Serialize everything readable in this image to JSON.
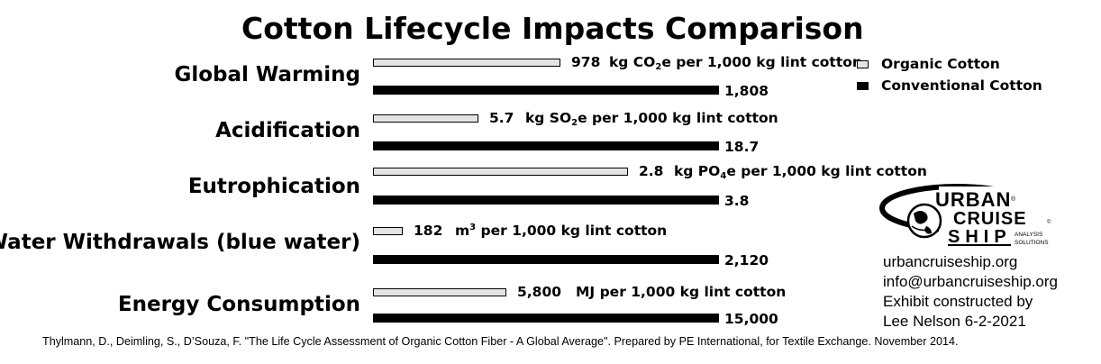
{
  "title": "Cotton Lifecycle Impacts Comparison",
  "chart_data": {
    "type": "bar",
    "orientation": "horizontal",
    "title": "Cotton Lifecycle Impacts Comparison",
    "categories": [
      "Global Warming",
      "Acidification",
      "Eutrophication",
      "Water Withdrawals (blue water)",
      "Energy Consumption"
    ],
    "units": [
      "kg CO₂e per 1,000 kg lint cotton",
      "kg SO₂e per 1,000 kg lint cotton",
      "kg PO₄e per 1,000 kg lint cotton",
      "m³ per 1,000 kg lint cotton",
      "MJ per 1,000 kg lint cotton"
    ],
    "series": [
      {
        "name": "Organic Cotton",
        "color": "#e4e4e4",
        "values": [
          978,
          5.7,
          2.8,
          182,
          5800
        ],
        "labels": [
          "978",
          "5.7",
          "2.8",
          "182",
          "5,800"
        ]
      },
      {
        "name": "Conventional Cotton",
        "color": "#000000",
        "values": [
          1808,
          18.7,
          3.8,
          2120,
          15000
        ],
        "labels": [
          "1,808",
          "18.7",
          "3.8",
          "2,120",
          "15,000"
        ]
      }
    ],
    "legend_position": "top-right",
    "grid": false
  },
  "unit_parts": [
    {
      "pre": "kg CO",
      "sub": "2",
      "sup": "",
      "post": "e per 1,000 kg lint cotton"
    },
    {
      "pre": "kg SO",
      "sub": "2",
      "sup": "",
      "post": "e per 1,000 kg lint cotton"
    },
    {
      "pre": "kg PO",
      "sub": "4",
      "sup": "",
      "post": "e per 1,000 kg lint cotton"
    },
    {
      "pre": "m",
      "sub": "",
      "sup": "3",
      "post": " per 1,000 kg lint cotton"
    },
    {
      "pre": "MJ per 1,000 kg lint cotton",
      "sub": "",
      "sup": "",
      "post": ""
    }
  ],
  "logo": {
    "line1": "URBAN",
    "line2": "CRUISE",
    "line3": "SHIP",
    "tagline1": "ANALYSIS",
    "tagline2": "SOLUTIONS",
    "reg": "®",
    "copy": "©",
    "icon": "globe-icon"
  },
  "contact": {
    "website": "urbancruiseship.org",
    "email": "info@urbancruiseship.org",
    "exhibit": "Exhibit constructed by",
    "author": "Lee Nelson 6-2-2021"
  },
  "source": "Thylmann, D., Deimling, S., D’Souza, F. \"The Life Cycle Assessment of Organic Cotton Fiber - A Global Average\". Prepared by PE International, for Textile Exchange. November 2014."
}
